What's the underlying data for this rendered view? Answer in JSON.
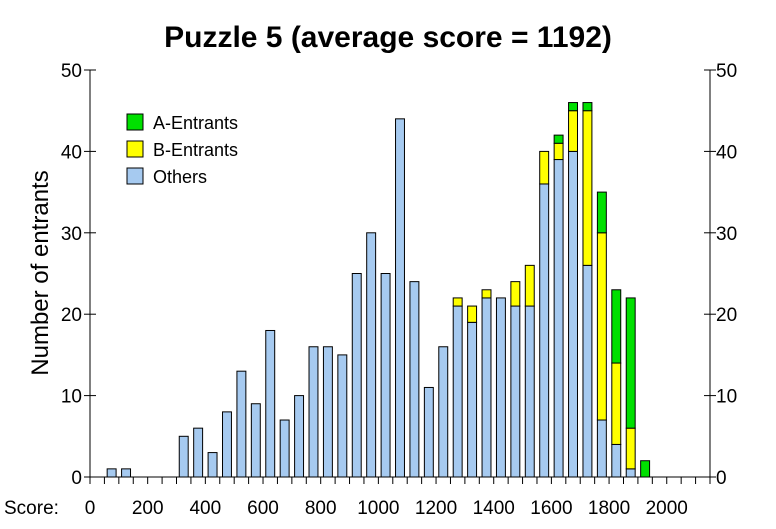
{
  "chart_data": {
    "type": "bar",
    "stacked": true,
    "title": "Puzzle 5 (average score = 1192)",
    "ylabel": "Number of entrants",
    "xlabel": "Score:",
    "xlim": [
      0,
      2150
    ],
    "ylim": [
      0,
      50
    ],
    "x_ticks": [
      0,
      200,
      400,
      600,
      800,
      1000,
      1200,
      1400,
      1600,
      1800,
      2000
    ],
    "y_ticks": [
      0,
      10,
      20,
      30,
      40,
      50
    ],
    "grid": false,
    "legend_position": "top-left",
    "bin_width": 50,
    "x": [
      75,
      125,
      175,
      225,
      275,
      325,
      375,
      425,
      475,
      525,
      575,
      625,
      675,
      725,
      775,
      825,
      875,
      925,
      975,
      1025,
      1075,
      1125,
      1175,
      1225,
      1275,
      1325,
      1375,
      1425,
      1475,
      1525,
      1575,
      1625,
      1675,
      1725,
      1775,
      1825,
      1875,
      1925,
      1975,
      2025
    ],
    "series": [
      {
        "name": "Others",
        "color": "#a6caf0",
        "values": [
          1,
          1,
          0,
          0,
          0,
          5,
          6,
          3,
          8,
          13,
          9,
          18,
          7,
          10,
          16,
          16,
          15,
          25,
          30,
          25,
          44,
          24,
          11,
          16,
          21,
          19,
          22,
          22,
          21,
          21,
          36,
          39,
          40,
          26,
          7,
          4,
          1,
          0,
          0,
          0
        ]
      },
      {
        "name": "B-Entrants",
        "color": "#ffff00",
        "values": [
          0,
          0,
          0,
          0,
          0,
          0,
          0,
          0,
          0,
          0,
          0,
          0,
          0,
          0,
          0,
          0,
          0,
          0,
          0,
          0,
          0,
          0,
          0,
          0,
          1,
          2,
          1,
          0,
          3,
          5,
          4,
          2,
          5,
          19,
          23,
          10,
          5,
          0,
          0,
          0
        ]
      },
      {
        "name": "A-Entrants",
        "color": "#00e000",
        "values": [
          0,
          0,
          0,
          0,
          0,
          0,
          0,
          0,
          0,
          0,
          0,
          0,
          0,
          0,
          0,
          0,
          0,
          0,
          0,
          0,
          0,
          0,
          0,
          0,
          0,
          0,
          0,
          0,
          0,
          0,
          0,
          1,
          1,
          1,
          5,
          9,
          16,
          2,
          0,
          0
        ]
      }
    ]
  }
}
